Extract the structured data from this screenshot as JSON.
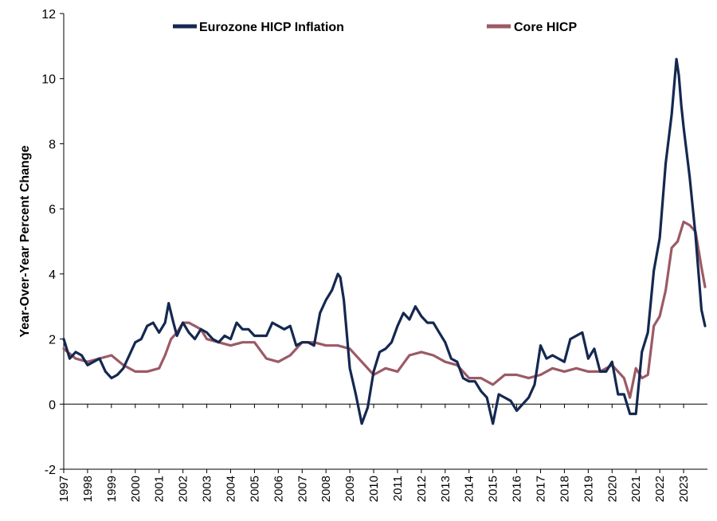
{
  "chart_data": {
    "type": "line",
    "title": "",
    "xlabel": "",
    "ylabel": "Year-Over-Year Percent Change",
    "xlim": [
      1997,
      2024
    ],
    "ylim": [
      -2,
      12
    ],
    "y_ticks": [
      "-2",
      "0",
      "2",
      "4",
      "6",
      "8",
      "10",
      "12"
    ],
    "x_ticks": [
      "1997",
      "1998",
      "1999",
      "2000",
      "2001",
      "2002",
      "2003",
      "2004",
      "2005",
      "2006",
      "2007",
      "2008",
      "2009",
      "2010",
      "2011",
      "2012",
      "2013",
      "2014",
      "2015",
      "2016",
      "2017",
      "2018",
      "2019",
      "2020",
      "2021",
      "2022",
      "2023"
    ],
    "legend_position": "top",
    "grid": false,
    "series": [
      {
        "name": "Eurozone HICP Inflation",
        "color": "#142850",
        "x": [
          1997.0,
          1997.25,
          1997.5,
          1997.75,
          1998.0,
          1998.25,
          1998.5,
          1998.75,
          1999.0,
          1999.25,
          1999.5,
          1999.75,
          2000.0,
          2000.25,
          2000.5,
          2000.75,
          2001.0,
          2001.25,
          2001.4,
          2001.6,
          2001.75,
          2002.0,
          2002.25,
          2002.5,
          2002.75,
          2003.0,
          2003.25,
          2003.5,
          2003.75,
          2004.0,
          2004.25,
          2004.5,
          2004.75,
          2005.0,
          2005.25,
          2005.5,
          2005.75,
          2006.0,
          2006.25,
          2006.5,
          2006.75,
          2007.0,
          2007.25,
          2007.5,
          2007.75,
          2008.0,
          2008.25,
          2008.5,
          2008.6,
          2008.75,
          2009.0,
          2009.25,
          2009.5,
          2009.75,
          2010.0,
          2010.25,
          2010.5,
          2010.75,
          2011.0,
          2011.25,
          2011.5,
          2011.75,
          2012.0,
          2012.25,
          2012.5,
          2012.75,
          2013.0,
          2013.25,
          2013.5,
          2013.75,
          2014.0,
          2014.25,
          2014.5,
          2014.75,
          2015.0,
          2015.25,
          2015.5,
          2015.75,
          2016.0,
          2016.25,
          2016.5,
          2016.75,
          2017.0,
          2017.25,
          2017.5,
          2017.75,
          2018.0,
          2018.25,
          2018.5,
          2018.75,
          2019.0,
          2019.25,
          2019.5,
          2019.75,
          2020.0,
          2020.25,
          2020.5,
          2020.75,
          2021.0,
          2021.25,
          2021.5,
          2021.75,
          2022.0,
          2022.25,
          2022.5,
          2022.7,
          2022.8,
          2022.9,
          2023.0,
          2023.25,
          2023.5,
          2023.75,
          2023.9
        ],
        "y": [
          2.0,
          1.4,
          1.6,
          1.5,
          1.2,
          1.3,
          1.4,
          1.0,
          0.8,
          0.9,
          1.1,
          1.5,
          1.9,
          2.0,
          2.4,
          2.5,
          2.2,
          2.5,
          3.1,
          2.5,
          2.1,
          2.5,
          2.2,
          2.0,
          2.3,
          2.2,
          2.0,
          1.9,
          2.1,
          2.0,
          2.5,
          2.3,
          2.3,
          2.1,
          2.1,
          2.1,
          2.5,
          2.4,
          2.3,
          2.4,
          1.8,
          1.9,
          1.9,
          1.8,
          2.8,
          3.2,
          3.5,
          4.0,
          3.9,
          3.2,
          1.1,
          0.3,
          -0.6,
          -0.1,
          1.0,
          1.6,
          1.7,
          1.9,
          2.4,
          2.8,
          2.6,
          3.0,
          2.7,
          2.5,
          2.5,
          2.2,
          1.9,
          1.4,
          1.3,
          0.8,
          0.7,
          0.7,
          0.4,
          0.2,
          -0.6,
          0.3,
          0.2,
          0.1,
          -0.2,
          0.0,
          0.2,
          0.6,
          1.8,
          1.4,
          1.5,
          1.4,
          1.3,
          2.0,
          2.1,
          2.2,
          1.4,
          1.7,
          1.0,
          1.0,
          1.3,
          0.3,
          0.3,
          -0.3,
          -0.3,
          1.6,
          2.2,
          4.1,
          5.1,
          7.4,
          8.9,
          10.6,
          10.1,
          9.2,
          8.5,
          7.0,
          5.2,
          2.9,
          2.4
        ]
      },
      {
        "name": "Core HICP",
        "color": "#9b5a66",
        "x": [
          1997.0,
          1997.5,
          1998.0,
          1998.5,
          1999.0,
          1999.5,
          2000.0,
          2000.5,
          2001.0,
          2001.25,
          2001.5,
          2001.75,
          2002.0,
          2002.25,
          2002.5,
          2002.75,
          2003.0,
          2003.5,
          2004.0,
          2004.5,
          2005.0,
          2005.5,
          2006.0,
          2006.5,
          2007.0,
          2007.5,
          2008.0,
          2008.5,
          2009.0,
          2009.5,
          2010.0,
          2010.5,
          2011.0,
          2011.5,
          2012.0,
          2012.5,
          2013.0,
          2013.5,
          2014.0,
          2014.5,
          2015.0,
          2015.5,
          2016.0,
          2016.5,
          2017.0,
          2017.5,
          2018.0,
          2018.5,
          2019.0,
          2019.5,
          2020.0,
          2020.5,
          2020.75,
          2021.0,
          2021.25,
          2021.5,
          2021.75,
          2022.0,
          2022.25,
          2022.5,
          2022.75,
          2023.0,
          2023.25,
          2023.5,
          2023.75,
          2023.9
        ],
        "y": [
          1.7,
          1.4,
          1.3,
          1.4,
          1.5,
          1.2,
          1.0,
          1.0,
          1.1,
          1.5,
          2.0,
          2.2,
          2.5,
          2.5,
          2.4,
          2.3,
          2.0,
          1.9,
          1.8,
          1.9,
          1.9,
          1.4,
          1.3,
          1.5,
          1.9,
          1.9,
          1.8,
          1.8,
          1.7,
          1.3,
          0.9,
          1.1,
          1.0,
          1.5,
          1.6,
          1.5,
          1.3,
          1.2,
          0.8,
          0.8,
          0.6,
          0.9,
          0.9,
          0.8,
          0.9,
          1.1,
          1.0,
          1.1,
          1.0,
          1.0,
          1.2,
          0.8,
          0.2,
          1.1,
          0.8,
          0.9,
          2.4,
          2.7,
          3.5,
          4.8,
          5.0,
          5.6,
          5.5,
          5.3,
          4.2,
          3.6
        ]
      }
    ]
  }
}
